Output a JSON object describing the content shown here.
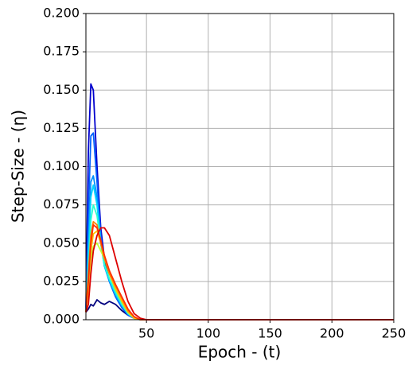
{
  "chart_data": {
    "type": "line",
    "x_label": "Epoch - (t)",
    "y_label": "Step-Size - (η)",
    "x": [
      1,
      3,
      5,
      7,
      10,
      13,
      16,
      20,
      25,
      30,
      35,
      40,
      45,
      50,
      60,
      250
    ],
    "series": [
      {
        "color": "#00007f",
        "values": [
          0.005,
          0.007,
          0.01,
          0.009,
          0.013,
          0.011,
          0.01,
          0.012,
          0.01,
          0.006,
          0.003,
          0.001,
          0,
          0,
          0,
          0
        ]
      },
      {
        "color": "#0000cd",
        "values": [
          0.005,
          0.11,
          0.154,
          0.15,
          0.1,
          0.06,
          0.04,
          0.025,
          0.015,
          0.008,
          0.003,
          0.001,
          0,
          0,
          0,
          0
        ]
      },
      {
        "color": "#0060ff",
        "values": [
          0.005,
          0.07,
          0.12,
          0.122,
          0.09,
          0.055,
          0.035,
          0.025,
          0.015,
          0.008,
          0.003,
          0.001,
          0,
          0,
          0,
          0
        ]
      },
      {
        "color": "#0090ff",
        "values": [
          0.005,
          0.05,
          0.09,
          0.094,
          0.08,
          0.05,
          0.035,
          0.025,
          0.016,
          0.009,
          0.004,
          0.001,
          0,
          0,
          0,
          0
        ]
      },
      {
        "color": "#00d4ff",
        "values": [
          0.005,
          0.04,
          0.08,
          0.088,
          0.075,
          0.05,
          0.035,
          0.026,
          0.017,
          0.01,
          0.004,
          0.001,
          0,
          0,
          0,
          0
        ]
      },
      {
        "color": "#29ffce",
        "values": [
          0.005,
          0.03,
          0.065,
          0.075,
          0.068,
          0.05,
          0.036,
          0.027,
          0.018,
          0.01,
          0.004,
          0.001,
          0,
          0,
          0,
          0
        ]
      },
      {
        "color": "#c1ff36",
        "values": [
          0.005,
          0.02,
          0.04,
          0.048,
          0.05,
          0.045,
          0.04,
          0.03,
          0.02,
          0.012,
          0.005,
          0.001,
          0,
          0,
          0,
          0
        ]
      },
      {
        "color": "#ffc400",
        "values": [
          0.005,
          0.02,
          0.045,
          0.056,
          0.058,
          0.05,
          0.04,
          0.03,
          0.02,
          0.012,
          0.005,
          0.001,
          0,
          0,
          0,
          0
        ]
      },
      {
        "color": "#ff8000",
        "values": [
          0.005,
          0.03,
          0.055,
          0.064,
          0.062,
          0.05,
          0.04,
          0.03,
          0.022,
          0.014,
          0.006,
          0.002,
          0,
          0,
          0,
          0
        ]
      },
      {
        "color": "#ff3000",
        "values": [
          0.005,
          0.025,
          0.05,
          0.062,
          0.06,
          0.052,
          0.042,
          0.032,
          0.023,
          0.015,
          0.007,
          0.002,
          0,
          0,
          0,
          0
        ]
      },
      {
        "color": "#dd0000",
        "values": [
          0.005,
          0.01,
          0.03,
          0.045,
          0.055,
          0.06,
          0.06,
          0.055,
          0.04,
          0.025,
          0.012,
          0.004,
          0.001,
          0,
          0,
          0
        ]
      }
    ],
    "xlim": [
      1,
      250
    ],
    "xticks": [
      50,
      100,
      150,
      200,
      250
    ],
    "ylim": [
      0,
      0.2
    ],
    "yticks": [
      {
        "value": 0,
        "label": "0.000"
      },
      0.025,
      {
        "value": 0.05,
        "label": "0.050"
      },
      0.075,
      {
        "value": 0.1,
        "label": "0.100"
      },
      0.125,
      {
        "value": 0.15,
        "label": "0.150"
      },
      0.175,
      {
        "value": 0.2,
        "label": "0.200"
      }
    ],
    "grid": true
  }
}
